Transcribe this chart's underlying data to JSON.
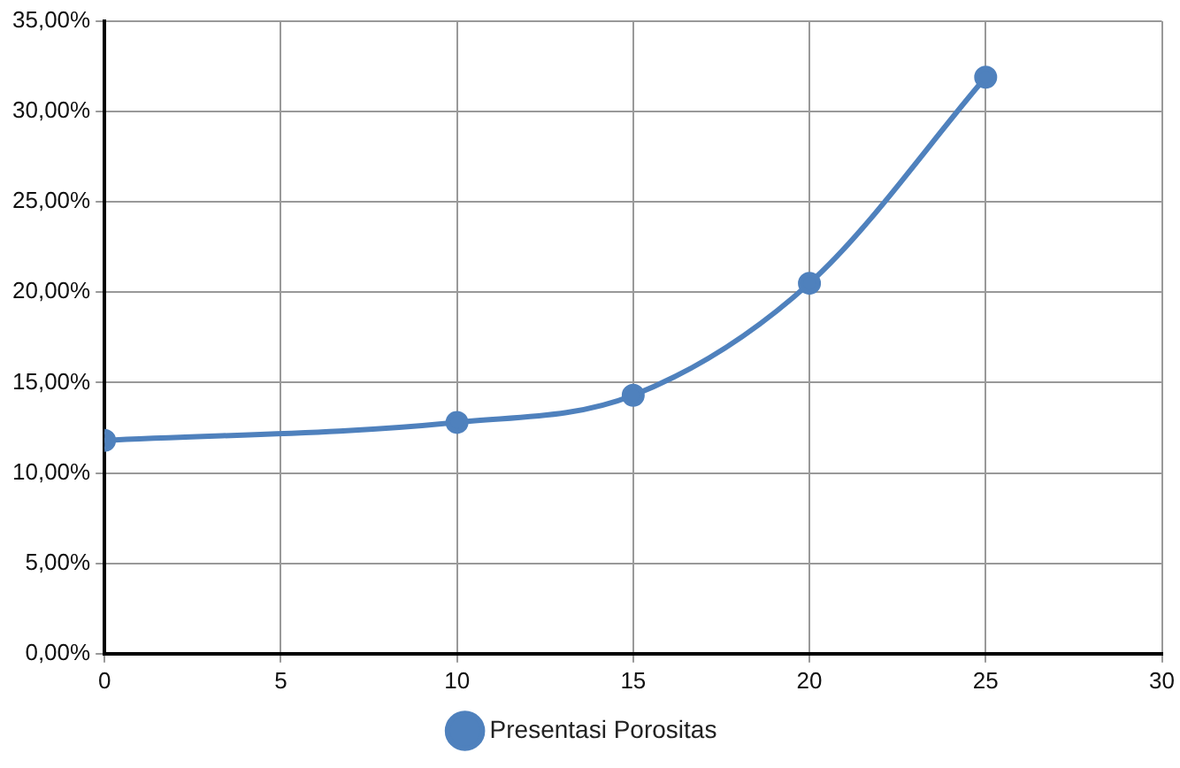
{
  "chart_data": {
    "type": "line",
    "x": [
      0,
      10,
      15,
      20,
      25
    ],
    "series": [
      {
        "name": "Presentasi Porositas",
        "color": "#4f81bd",
        "values": [
          11.8,
          12.8,
          14.3,
          20.5,
          31.9
        ]
      }
    ],
    "xlim": [
      0,
      30
    ],
    "xticks": [
      0,
      5,
      10,
      15,
      20,
      25,
      30
    ],
    "ylim": [
      0,
      35
    ],
    "yticks": [
      {
        "value": 0,
        "label": "0,00%"
      },
      {
        "value": 5,
        "label": "5,00%"
      },
      {
        "value": 10,
        "label": "10,00%"
      },
      {
        "value": 15,
        "label": "15,00%"
      },
      {
        "value": 20,
        "label": "20,00%"
      },
      {
        "value": 25,
        "label": "25,00%"
      },
      {
        "value": 30,
        "label": "30,00%"
      },
      {
        "value": 35,
        "label": "35,00%"
      }
    ],
    "grid": true,
    "legend": "bottom",
    "marker": "circle",
    "line_style": "solid"
  }
}
